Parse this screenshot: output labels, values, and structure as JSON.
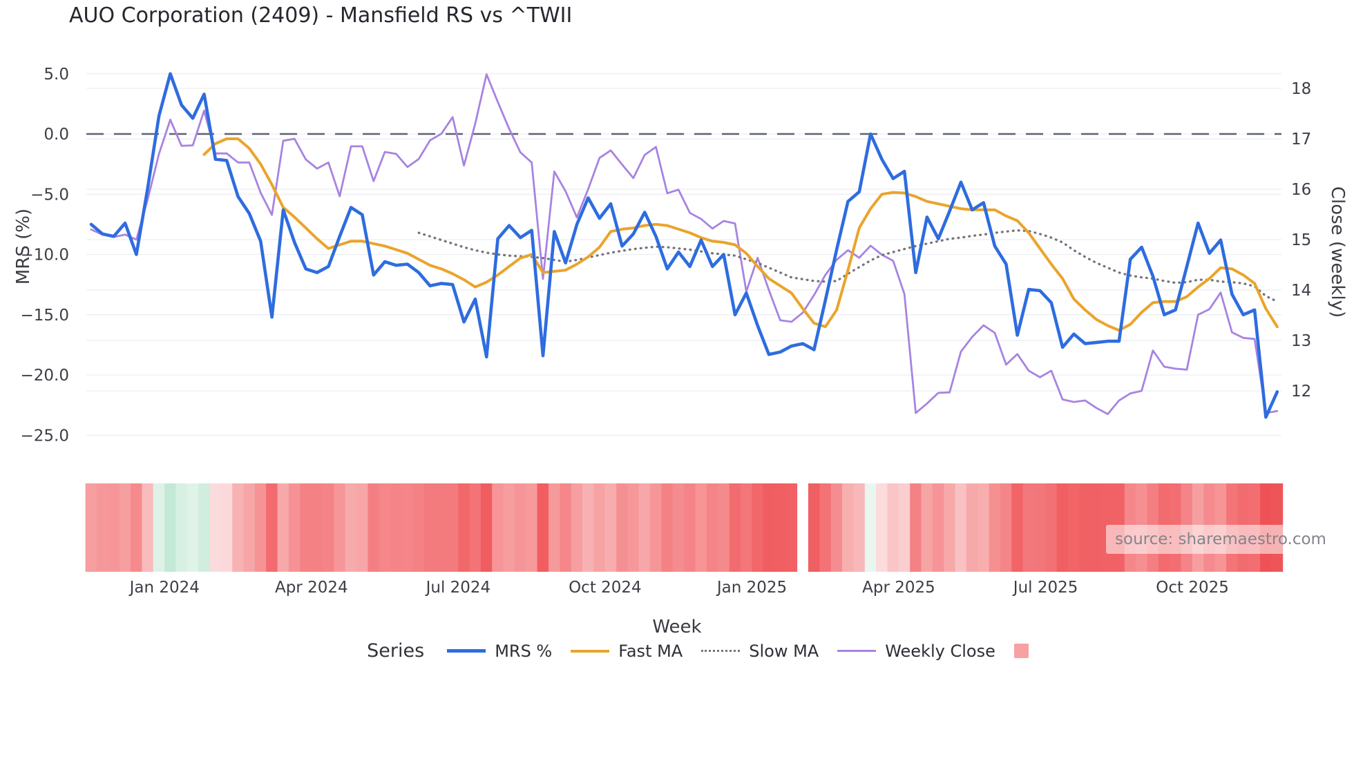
{
  "header": {
    "title": "AUO Corporation (2409) - Mansfield RS vs ^TWII"
  },
  "axes": {
    "left_label": "MRS (%)",
    "right_label": "Close (weekly)",
    "x_label": "Week",
    "left_ticks": [
      5.0,
      0.0,
      -5.0,
      -10.0,
      -15.0,
      -20.0,
      -25.0
    ],
    "left_tick_labels": [
      "5.0",
      "0.0",
      "−5.0",
      "−10.0",
      "−15.0",
      "−20.0",
      "−25.0"
    ],
    "right_ticks": [
      18,
      17,
      16,
      15,
      14,
      13,
      12
    ],
    "right_tick_labels": [
      "18",
      "17",
      "16",
      "15",
      "14",
      "13",
      "12"
    ],
    "x_tick_labels": [
      "Jan 2024",
      "Apr 2024",
      "Jul 2024",
      "Oct 2024",
      "Jan 2025",
      "Apr 2025",
      "Jul 2025",
      "Oct 2025"
    ],
    "x_tick_weeks": [
      6.5,
      19.5,
      32.5,
      45.5,
      58.5,
      71.5,
      84.5,
      97.5
    ]
  },
  "legend": {
    "series_label": "Series",
    "swatch_color": "#f7a1a3"
  },
  "source": {
    "text": "source: sharemaestro.com"
  },
  "chart_data": {
    "type": "line",
    "x_unit": "week",
    "n_weeks": 106,
    "x_range_note": "weekly points from mid-Nov 2023 to late-Nov 2025",
    "left_axis": {
      "label": "MRS (%)",
      "range": [
        -26.5,
        6.5
      ],
      "zero_line": 0.0
    },
    "right_axis": {
      "label": "Close (weekly)",
      "range": [
        11.3,
        18.5
      ]
    },
    "grid": true,
    "legend_position": "bottom",
    "colors": {
      "grid": "#ecedf3",
      "zero_line": "#5d6170",
      "mrs": "#2e6cdf",
      "fast_ma": "#eaa42c",
      "slow_ma": "#73737b",
      "weekly_close": "#a783e1"
    },
    "series": [
      {
        "name": "MRS %",
        "axis": "left",
        "color": "#2e6cdf",
        "width": 4.6,
        "style": "solid",
        "values": [
          -7.5,
          -8.3,
          -8.5,
          -7.4,
          -10.0,
          -4.5,
          1.5,
          5.0,
          2.4,
          1.3,
          3.3,
          -2.1,
          -2.2,
          -5.2,
          -6.6,
          -8.9,
          -15.2,
          -6.3,
          -9.0,
          -11.2,
          -11.5,
          -11.0,
          -8.5,
          -6.1,
          -6.7,
          -11.7,
          -10.6,
          -10.9,
          -10.8,
          -11.5,
          -12.6,
          -12.4,
          -12.5,
          -15.6,
          -13.7,
          -18.5,
          -8.7,
          -7.6,
          -8.6,
          -8.0,
          -18.4,
          -8.1,
          -10.7,
          -7.5,
          -5.3,
          -7.0,
          -5.8,
          -9.3,
          -8.3,
          -6.5,
          -8.5,
          -11.2,
          -9.8,
          -11.0,
          -8.8,
          -11.0,
          -10.0,
          -15.0,
          -13.2,
          -15.9,
          -18.3,
          -18.1,
          -17.6,
          -17.4,
          -17.9,
          -13.8,
          -9.6,
          -5.6,
          -4.8,
          0.0,
          -2.1,
          -3.7,
          -3.1,
          -11.5,
          -6.9,
          -8.7,
          -6.4,
          -4.0,
          -6.3,
          -5.7,
          -9.3,
          -10.8,
          -16.7,
          -12.9,
          -13.0,
          -14.0,
          -17.7,
          -16.6,
          -17.4,
          -17.3,
          -17.2,
          -17.2,
          -10.4,
          -9.4,
          -11.8,
          -15.0,
          -14.6,
          -11.0,
          -7.4,
          -9.9,
          -8.8,
          -13.3,
          -15.0,
          -14.6,
          -23.5,
          -21.4
        ]
      },
      {
        "name": "Fast MA",
        "axis": "left",
        "color": "#eaa42c",
        "width": 4.0,
        "style": "solid",
        "values": [
          null,
          null,
          null,
          null,
          null,
          null,
          null,
          null,
          null,
          null,
          -1.7,
          -0.8,
          -0.4,
          -0.4,
          -1.2,
          -2.5,
          -4.2,
          -6.1,
          -6.9,
          -7.8,
          -8.7,
          -9.5,
          -9.2,
          -8.9,
          -8.9,
          -9.1,
          -9.3,
          -9.6,
          -9.9,
          -10.4,
          -10.9,
          -11.2,
          -11.6,
          -12.1,
          -12.7,
          -12.3,
          -11.7,
          -11.0,
          -10.3,
          -10.0,
          -11.5,
          -11.4,
          -11.3,
          -10.8,
          -10.2,
          -9.4,
          -8.1,
          -7.9,
          -7.8,
          -7.6,
          -7.5,
          -7.6,
          -7.9,
          -8.2,
          -8.6,
          -8.9,
          -9.0,
          -9.2,
          -9.9,
          -11.0,
          -12.0,
          -12.6,
          -13.2,
          -14.5,
          -15.7,
          -16.0,
          -14.6,
          -11.3,
          -7.8,
          -6.2,
          -5.0,
          -4.85,
          -4.9,
          -5.2,
          -5.6,
          -5.8,
          -6.0,
          -6.2,
          -6.3,
          -6.3,
          -6.3,
          -6.8,
          -7.2,
          -8.2,
          -9.5,
          -10.8,
          -12.0,
          -13.7,
          -14.6,
          -15.4,
          -15.9,
          -16.3,
          -15.8,
          -14.8,
          -14.0,
          -13.9,
          -13.9,
          -13.5,
          -12.7,
          -12.0,
          -11.1,
          -11.2,
          -11.7,
          -12.4,
          -14.5,
          -16.0
        ]
      },
      {
        "name": "Slow MA",
        "axis": "left",
        "color": "#73737b",
        "width": 3.3,
        "style": "dotted",
        "values": [
          null,
          null,
          null,
          null,
          null,
          null,
          null,
          null,
          null,
          null,
          null,
          null,
          null,
          null,
          null,
          null,
          null,
          null,
          null,
          null,
          null,
          null,
          null,
          null,
          null,
          null,
          null,
          null,
          null,
          -8.2,
          -8.5,
          -8.8,
          -9.1,
          -9.4,
          -9.65,
          -9.85,
          -10.0,
          -10.1,
          -10.15,
          -10.2,
          -10.3,
          -10.45,
          -10.6,
          -10.45,
          -10.25,
          -10.05,
          -9.85,
          -9.7,
          -9.55,
          -9.45,
          -9.35,
          -9.4,
          -9.5,
          -9.6,
          -9.75,
          -9.9,
          -10.0,
          -10.1,
          -10.4,
          -10.7,
          -11.1,
          -11.5,
          -11.9,
          -12.05,
          -12.2,
          -12.25,
          -12.2,
          -11.6,
          -11.05,
          -10.5,
          -10.05,
          -9.8,
          -9.55,
          -9.3,
          -9.1,
          -8.9,
          -8.7,
          -8.6,
          -8.45,
          -8.35,
          -8.2,
          -8.1,
          -8.0,
          -8.05,
          -8.3,
          -8.6,
          -9.0,
          -9.65,
          -10.2,
          -10.7,
          -11.1,
          -11.5,
          -11.75,
          -11.9,
          -12.0,
          -12.2,
          -12.35,
          -12.3,
          -12.1,
          -12.1,
          -12.25,
          -12.3,
          -12.4,
          -12.65,
          -13.45,
          -13.9
        ]
      },
      {
        "name": "Weekly Close",
        "axis": "right",
        "color": "#a783e1",
        "width": 2.8,
        "style": "solid",
        "values": [
          15.2,
          15.1,
          15.05,
          15.1,
          15.0,
          15.8,
          16.7,
          17.38,
          16.86,
          16.87,
          17.56,
          16.71,
          16.71,
          16.53,
          16.53,
          15.93,
          15.49,
          16.96,
          17.0,
          16.59,
          16.41,
          16.53,
          15.86,
          16.85,
          16.85,
          16.16,
          16.74,
          16.7,
          16.44,
          16.6,
          16.97,
          17.1,
          17.43,
          16.47,
          17.3,
          18.28,
          17.73,
          17.2,
          16.73,
          16.53,
          14.22,
          16.35,
          15.96,
          15.44,
          16.0,
          16.62,
          16.77,
          16.49,
          16.22,
          16.68,
          16.84,
          15.92,
          15.99,
          15.53,
          15.41,
          15.22,
          15.37,
          15.32,
          13.97,
          14.64,
          14.0,
          13.4,
          13.37,
          13.55,
          13.9,
          14.3,
          14.6,
          14.79,
          14.64,
          14.88,
          14.7,
          14.58,
          13.92,
          11.56,
          11.75,
          11.96,
          11.97,
          12.78,
          13.07,
          13.3,
          13.15,
          12.52,
          12.73,
          12.4,
          12.27,
          12.4,
          11.83,
          11.78,
          11.81,
          11.66,
          11.54,
          11.81,
          11.95,
          12.0,
          12.8,
          12.48,
          12.44,
          12.42,
          13.51,
          13.62,
          13.95,
          13.16,
          13.05,
          13.03,
          11.56,
          11.6
        ]
      }
    ],
    "heatmap": {
      "source_series": "MRS %",
      "gap_weeks": [
        63
      ],
      "scale_stops": [
        {
          "v": -25,
          "c": "#ed4f53"
        },
        {
          "v": -20,
          "c": "#ef585c"
        },
        {
          "v": -16,
          "c": "#f16669"
        },
        {
          "v": -13,
          "c": "#f3777a"
        },
        {
          "v": -10,
          "c": "#f58a8d"
        },
        {
          "v": -8,
          "c": "#f69a9c"
        },
        {
          "v": -5,
          "c": "#f8b4b5"
        },
        {
          "v": -2,
          "c": "#fbdcdd"
        },
        {
          "v": -0.01,
          "c": "#fdeceb"
        },
        {
          "v": 0,
          "c": "#eaf6f0"
        },
        {
          "v": 5,
          "c": "#c3e9d6"
        }
      ]
    }
  }
}
